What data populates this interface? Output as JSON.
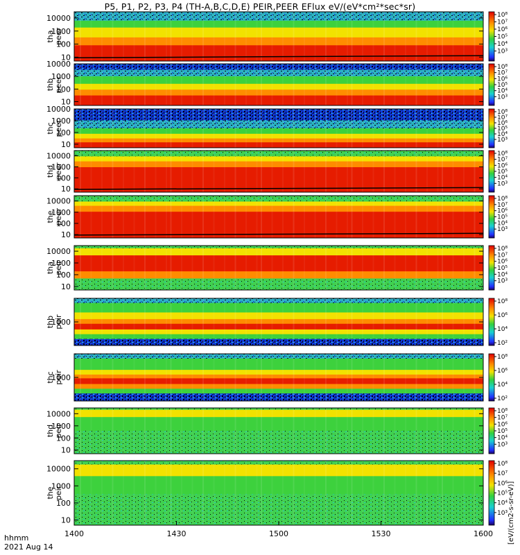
{
  "title": "P5, P1, P2, P3, P4 (TH-A,B,C,D,E) PEIR,PEER EFlux eV/(eV*cm²*sec*sr)",
  "colorbar_unit": "[eV/(cm2-s-sr-eV)]",
  "footer": {
    "time_label": "hhmm",
    "date_label": "2021 Aug 14"
  },
  "colors": {
    "red": "#e61c00",
    "orange": "#ff8c00",
    "yellow": "#f2e200",
    "green": "#3dd13d",
    "cyan": "#18d0d0",
    "blue": "#1838e0",
    "black": "#000000"
  },
  "chart_data": {
    "type": "heatmap",
    "xlabel": "hhmm",
    "x_ticks": [
      "1400",
      "1430",
      "1500",
      "1530",
      "1600"
    ],
    "xlim": [
      "1400",
      "1600"
    ],
    "y_scale": "log",
    "colorbar": {
      "scale": "log",
      "ticks": [
        "10²",
        "10³",
        "10⁴",
        "10⁵",
        "10⁶",
        "10⁷",
        "10⁸"
      ],
      "range": [
        100,
        100000000
      ]
    },
    "panels": [
      {
        "probe": "tha",
        "species": "peer",
        "ylim": [
          5,
          30000
        ],
        "y_ticks": [
          "10",
          "100",
          "1000",
          "10000"
        ],
        "style": "electron_a"
      },
      {
        "probe": "thb",
        "species": "peer",
        "ylim": [
          5,
          10000
        ],
        "y_ticks": [
          "10",
          "100",
          "1000",
          "10000"
        ],
        "style": "electron_b"
      },
      {
        "probe": "thc",
        "species": "peer",
        "ylim": [
          5,
          10000
        ],
        "y_ticks": [
          "10",
          "100",
          "1000",
          "10000"
        ],
        "style": "electron_c"
      },
      {
        "probe": "thd",
        "species": "peer",
        "ylim": [
          5,
          30000
        ],
        "y_ticks": [
          "10",
          "100",
          "1000",
          "10000"
        ],
        "style": "electron_d"
      },
      {
        "probe": "the",
        "species": "peer",
        "ylim": [
          5,
          30000
        ],
        "y_ticks": [
          "10",
          "100",
          "1000",
          "10000"
        ],
        "style": "electron_e"
      },
      {
        "probe": "tha",
        "species": "peir",
        "ylim": [
          5,
          30000
        ],
        "y_ticks": [
          "10",
          "100",
          "1000",
          "10000"
        ],
        "style": "ion_a"
      },
      {
        "probe": "thb",
        "species": "peir",
        "ylim": [
          100,
          10000
        ],
        "y_ticks": [
          "1000"
        ],
        "style": "ion_b"
      },
      {
        "probe": "thc",
        "species": "peir",
        "ylim": [
          100,
          10000
        ],
        "y_ticks": [
          "1000"
        ],
        "style": "ion_c"
      },
      {
        "probe": "thd",
        "species": "peir",
        "ylim": [
          5,
          30000
        ],
        "y_ticks": [
          "10",
          "100",
          "1000",
          "10000"
        ],
        "style": "ion_d"
      },
      {
        "probe": "the",
        "species": "peir",
        "ylim": [
          5,
          30000
        ],
        "y_ticks": [
          "10",
          "100",
          "1000",
          "10000"
        ],
        "style": "ion_e"
      }
    ]
  }
}
